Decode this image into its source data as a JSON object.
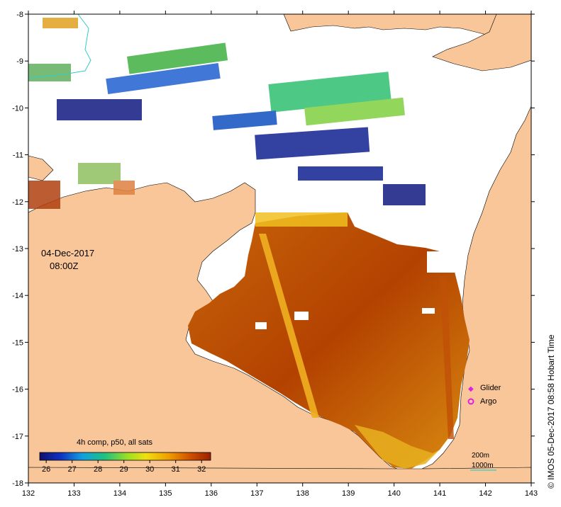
{
  "map": {
    "date": "04-Dec-2017",
    "time": "08:00Z",
    "product": "4h comp, p50, all sats",
    "credit": "©  IMOS 05-Dec-2017 08:58 Hobart Time",
    "x_ticks": [
      "132",
      "133",
      "134",
      "135",
      "136",
      "137",
      "138",
      "139",
      "140",
      "141",
      "142",
      "143"
    ],
    "y_ticks": [
      "-8",
      "-9",
      "-10",
      "-11",
      "-12",
      "-13",
      "-14",
      "-15",
      "-16",
      "-17",
      "-18"
    ],
    "lon_range": [
      132,
      143
    ],
    "lat_range": [
      -18,
      -8
    ]
  },
  "colorbar": {
    "ticks": [
      "26",
      "27",
      "28",
      "29",
      "30",
      "31",
      "32"
    ],
    "min": 25.75,
    "max": 32.35
  },
  "legend": {
    "glider": "Glider",
    "argo": "Argo",
    "contour_200": "200m",
    "contour_1000": "1000m"
  },
  "colors": {
    "land": "#F9C69A",
    "sea_none": "#ffffff",
    "contour_1000": "#33CCCC",
    "glider": "#E020E0",
    "argo": "#E020E0"
  }
}
